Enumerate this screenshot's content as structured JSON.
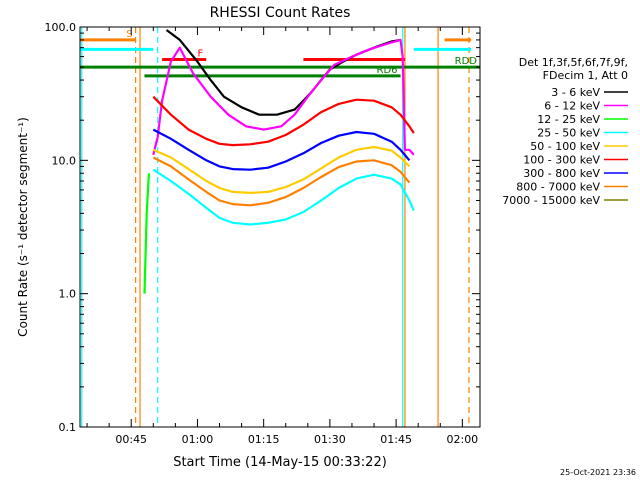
{
  "chart_data": {
    "type": "line",
    "title": "RHESSI Count Rates",
    "xlabel": "Start Time (14-May-15 00:33:22)",
    "ylabel": "Count Rate (s⁻¹ detector segment⁻¹)",
    "yscale": "log",
    "ylim": [
      0.1,
      100
    ],
    "xlim_minutes": [
      33.4,
      124
    ],
    "x_ticks": [
      "00:45",
      "01:00",
      "01:15",
      "01:30",
      "01:45",
      "02:00"
    ],
    "x_tick_minutes": [
      45,
      60,
      75,
      90,
      105,
      120
    ],
    "y_ticks": [
      "0.1",
      "1.0",
      "10.0",
      "100.0"
    ],
    "y_tick_values": [
      0.1,
      1,
      10,
      100
    ],
    "legend_title": [
      "Det 1f,3f,5f,6f,7f,9f,",
      "FDecim 1, Att 0"
    ],
    "legend_position": "right",
    "series": [
      {
        "name": "3 - 6 keV",
        "color": "#000000",
        "x": [
          53,
          56,
          60,
          63,
          66,
          70,
          74,
          78,
          82,
          84,
          86,
          88,
          90,
          93,
          96,
          100,
          104,
          106
        ],
        "y": [
          95,
          80,
          55,
          40,
          30,
          25,
          22,
          22,
          24,
          28,
          33,
          40,
          48,
          55,
          62,
          70,
          78,
          80
        ]
      },
      {
        "name": "6 - 12 keV",
        "color": "#ff00ff",
        "x": [
          50,
          51,
          52,
          54,
          56,
          59,
          63,
          67,
          71,
          75,
          79,
          82,
          85,
          88,
          91,
          95,
          99,
          103,
          106,
          106.5,
          107,
          108,
          109
        ],
        "y": [
          11,
          15,
          28,
          55,
          70,
          45,
          30,
          22,
          18,
          17,
          18,
          22,
          30,
          40,
          52,
          60,
          68,
          75,
          80,
          60,
          12,
          12,
          11
        ]
      },
      {
        "name": "12 - 25 keV",
        "color": "#00ff00",
        "x": [
          48,
          48.5,
          49
        ],
        "y": [
          1.0,
          4.0,
          8.0
        ]
      },
      {
        "name": "25 - 50 keV",
        "color": "#00ffff",
        "x": [
          50,
          54,
          58,
          62,
          65,
          68,
          72,
          76,
          80,
          84,
          88,
          92,
          96,
          100,
          104,
          106,
          108,
          109
        ],
        "y": [
          8.5,
          7.0,
          5.6,
          4.4,
          3.7,
          3.4,
          3.3,
          3.4,
          3.6,
          4.1,
          5.0,
          6.2,
          7.3,
          7.8,
          7.3,
          6.6,
          5.0,
          4.2
        ]
      },
      {
        "name": "50 - 100 keV",
        "color": "#ffcc00",
        "x": [
          50,
          54,
          58,
          62,
          65,
          68,
          72,
          76,
          80,
          84,
          88,
          92,
          96,
          100,
          104,
          106,
          108
        ],
        "y": [
          12,
          10.5,
          8.6,
          7.0,
          6.2,
          5.8,
          5.7,
          5.8,
          6.3,
          7.2,
          8.7,
          10.5,
          12.0,
          12.6,
          11.8,
          10.5,
          9.0
        ]
      },
      {
        "name": "100 - 300 keV",
        "color": "#ff0000",
        "x": [
          50,
          54,
          58,
          62,
          65,
          68,
          72,
          76,
          80,
          84,
          88,
          92,
          96,
          100,
          104,
          106,
          108,
          109
        ],
        "y": [
          30,
          22,
          17,
          14.5,
          13.3,
          13.0,
          13.2,
          13.8,
          15.5,
          18.5,
          23,
          26.5,
          28.5,
          28,
          25,
          22,
          18,
          16
        ]
      },
      {
        "name": "300 - 800 keV",
        "color": "#0000ff",
        "x": [
          50,
          54,
          58,
          62,
          65,
          68,
          72,
          76,
          80,
          84,
          88,
          92,
          96,
          100,
          104,
          106,
          108
        ],
        "y": [
          17,
          14.5,
          12.0,
          10.0,
          9.0,
          8.6,
          8.5,
          8.8,
          9.8,
          11.3,
          13.5,
          15.3,
          16.3,
          15.8,
          13.8,
          12.0,
          10.0
        ]
      },
      {
        "name": "800 - 7000 keV",
        "color": "#ff8000",
        "x": [
          50,
          54,
          58,
          62,
          65,
          68,
          72,
          76,
          80,
          84,
          88,
          92,
          96,
          100,
          104,
          106,
          108
        ],
        "y": [
          10.5,
          9.0,
          7.2,
          5.8,
          5.0,
          4.7,
          4.6,
          4.8,
          5.3,
          6.2,
          7.5,
          8.9,
          9.8,
          10.0,
          9.2,
          8.2,
          6.8
        ]
      },
      {
        "name": "7000 - 15000 keV",
        "color": "#808000",
        "x": [],
        "y": []
      }
    ],
    "attenuator_bars": [
      {
        "label": "S",
        "color": "#ff8000",
        "x_range": [
          33.4,
          46
        ],
        "y": 80
      },
      {
        "label": "",
        "color": "#00ffff",
        "x_range": [
          33.4,
          50
        ],
        "y": 68
      },
      {
        "label": "",
        "color": "#ff8000",
        "x_range": [
          116,
          122
        ],
        "y": 80
      },
      {
        "label": "",
        "color": "#00ffff",
        "x_range": [
          109,
          122
        ],
        "y": 68
      },
      {
        "label": "F",
        "color": "#ff0000",
        "x_range": [
          52,
          62
        ],
        "y": 57
      },
      {
        "label": "",
        "color": "#ff0000",
        "x_range": [
          84,
          107
        ],
        "y": 57
      },
      {
        "label": "RDD",
        "color": "#007f00",
        "x_range": [
          33.4,
          124
        ],
        "y": 50
      },
      {
        "label": "RD6",
        "color": "#007f00",
        "x_range": [
          48,
          106
        ],
        "y": 43
      }
    ],
    "vertical_lines": [
      {
        "x": 33.8,
        "color": "#00ffff",
        "style": "solid"
      },
      {
        "x": 46,
        "color": "#ff8000",
        "style": "dashed"
      },
      {
        "x": 47,
        "color": "#ff8000",
        "style": "solid"
      },
      {
        "x": 51,
        "color": "#00ffff",
        "style": "dashed"
      },
      {
        "x": 106.5,
        "color": "#00ffff",
        "style": "solid"
      },
      {
        "x": 107,
        "color": "#ff8000",
        "style": "solid"
      },
      {
        "x": 114.5,
        "color": "#ff8000",
        "style": "solid"
      },
      {
        "x": 121.5,
        "color": "#ff8000",
        "style": "dashed"
      }
    ],
    "footer_date": "25-Oct-2021 23:36"
  }
}
